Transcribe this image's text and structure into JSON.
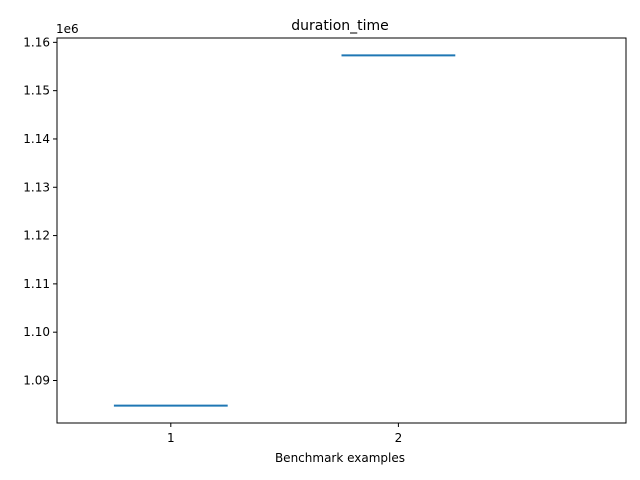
{
  "chart_data": {
    "type": "box",
    "title": "duration_time",
    "xlabel": "Benchmark examples",
    "ylabel": "",
    "offset_label": "1e6",
    "categories": [
      "1",
      "2"
    ],
    "x": [
      1,
      2
    ],
    "values": [
      1084800,
      1157300
    ],
    "xlim": [
      0.5,
      3.0
    ],
    "ylim": [
      1081200,
      1160900
    ],
    "y_tick_values": [
      1.09,
      1.1,
      1.11,
      1.12,
      1.13,
      1.14,
      1.15,
      1.16
    ],
    "y_tick_labels": [
      "1.09",
      "1.10",
      "1.11",
      "1.12",
      "1.13",
      "1.14",
      "1.15",
      "1.16"
    ],
    "scale": 1000000,
    "grid": false,
    "legend": "none",
    "series_color": "#1f77b4"
  }
}
